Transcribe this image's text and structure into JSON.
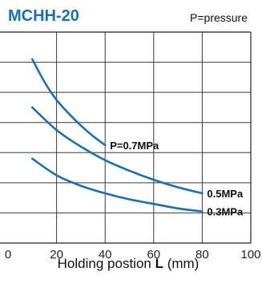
{
  "chart_data": {
    "type": "line",
    "title": "MCHH-20",
    "note": "P=pressure",
    "xlabel_prefix": "Holding postion ",
    "xlabel_bold": "L",
    "xlabel_suffix": " (mm)",
    "ylabel": "",
    "xlim": [
      0,
      100
    ],
    "ylim": [
      0,
      7
    ],
    "xticks": [
      0,
      20,
      40,
      60,
      80,
      100
    ],
    "grid": true,
    "series": [
      {
        "name": "P=0.7MPa",
        "color": "#1a6fb5",
        "x": [
          10,
          15,
          20,
          25,
          30,
          35,
          40
        ],
        "y": [
          6.1,
          5.35,
          4.75,
          4.3,
          3.9,
          3.55,
          3.25
        ]
      },
      {
        "name": "0.5MPa",
        "color": "#1a6fb5",
        "x": [
          10,
          20,
          30,
          40,
          50,
          60,
          70,
          80
        ],
        "y": [
          4.5,
          3.75,
          3.2,
          2.75,
          2.4,
          2.1,
          1.85,
          1.65
        ]
      },
      {
        "name": "0.3MPa",
        "color": "#1a6fb5",
        "x": [
          10,
          20,
          30,
          40,
          50,
          60,
          70,
          80
        ],
        "y": [
          2.8,
          2.25,
          1.9,
          1.65,
          1.45,
          1.3,
          1.15,
          1.05
        ]
      }
    ]
  }
}
